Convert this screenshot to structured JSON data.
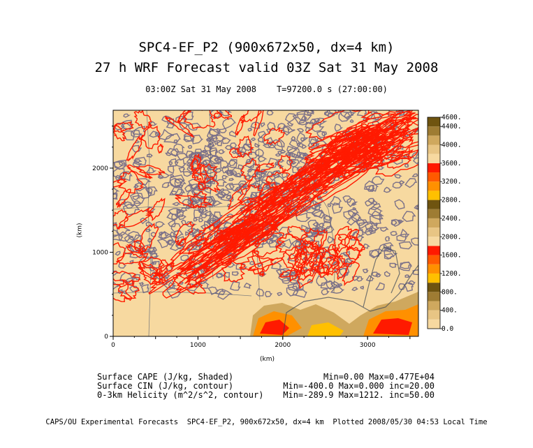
{
  "header": {
    "title_line1": "SPC4-EF_P2 (900x672x50, dx=4 km)",
    "title_line2": "27 h WRF Forecast valid 03Z Sat 31 May 2008",
    "valid_time": "03:00Z Sat 31 May 2008",
    "model_time": "T=97200.0 s (27:00:00)"
  },
  "axes": {
    "x_label": "(km)",
    "y_label": "(km)",
    "x_ticks": [
      "0",
      "1000",
      "2000",
      "3000"
    ],
    "y_ticks": [
      "0",
      "1000",
      "2000"
    ],
    "x_range_km": [
      0,
      3600
    ],
    "y_range_km": [
      0,
      2688
    ]
  },
  "colorbar": {
    "labels": [
      "4600.",
      "4400.",
      "4000.",
      "3600.",
      "3200.",
      "2800.",
      "2400.",
      "2000.",
      "1600.",
      "1200.",
      "800.",
      "400.",
      "0.0"
    ],
    "label_values": [
      4600,
      4400,
      4000,
      3600,
      3200,
      2800,
      2400,
      2000,
      1600,
      1200,
      800,
      400,
      0
    ],
    "bands": [
      {
        "from": 0,
        "to": 200,
        "color": "#f7d9a0"
      },
      {
        "from": 200,
        "to": 400,
        "color": "#e8c584"
      },
      {
        "from": 400,
        "to": 600,
        "color": "#cfa85e"
      },
      {
        "from": 600,
        "to": 800,
        "color": "#9e7c33"
      },
      {
        "from": 800,
        "to": 1000,
        "color": "#6f5410"
      },
      {
        "from": 1000,
        "to": 1200,
        "color": "#ffc000"
      },
      {
        "from": 1200,
        "to": 1400,
        "color": "#ff9000"
      },
      {
        "from": 1400,
        "to": 1600,
        "color": "#ff5a00"
      },
      {
        "from": 1600,
        "to": 1800,
        "color": "#ff1a00"
      },
      {
        "from": 1800,
        "to": 2000,
        "color": "#f7d9a0"
      },
      {
        "from": 2000,
        "to": 2200,
        "color": "#e8c584"
      },
      {
        "from": 2200,
        "to": 2400,
        "color": "#cfa85e"
      },
      {
        "from": 2400,
        "to": 2600,
        "color": "#9e7c33"
      },
      {
        "from": 2600,
        "to": 2800,
        "color": "#6f5410"
      },
      {
        "from": 2800,
        "to": 3000,
        "color": "#ffc000"
      },
      {
        "from": 3000,
        "to": 3200,
        "color": "#ff9000"
      },
      {
        "from": 3200,
        "to": 3400,
        "color": "#ff5a00"
      },
      {
        "from": 3400,
        "to": 3600,
        "color": "#ff1a00"
      },
      {
        "from": 3600,
        "to": 3800,
        "color": "#f7d9a0"
      },
      {
        "from": 3800,
        "to": 4000,
        "color": "#e8c584"
      },
      {
        "from": 4000,
        "to": 4200,
        "color": "#cfa85e"
      },
      {
        "from": 4200,
        "to": 4400,
        "color": "#9e7c33"
      },
      {
        "from": 4400,
        "to": 4600,
        "color": "#6f5410"
      }
    ]
  },
  "fields": [
    {
      "name": "Surface CAPE (J/kg, Shaded)",
      "stats": "Min=0.00 Max=0.477E+04"
    },
    {
      "name": "Surface CIN (J/kg, contour)",
      "stats": "Min=-400.0 Max=0.000 inc=20.00"
    },
    {
      "name": "0-3km Helicity (m^2/s^2, contour)",
      "stats": "Min=-289.9 Max=1212. inc=50.00"
    }
  ],
  "colors": {
    "background_shade": "#f7d9a0",
    "cin_contour": "#7b7189",
    "helicity_contour": "#ff1a00",
    "map_lines": "#4e5a70"
  },
  "footer": "CAPS/OU Experimental Forecasts  SPC4-EF_P2, 900x672x50, dx=4 km  Plotted 2008/05/30 04:53 Local Time"
}
